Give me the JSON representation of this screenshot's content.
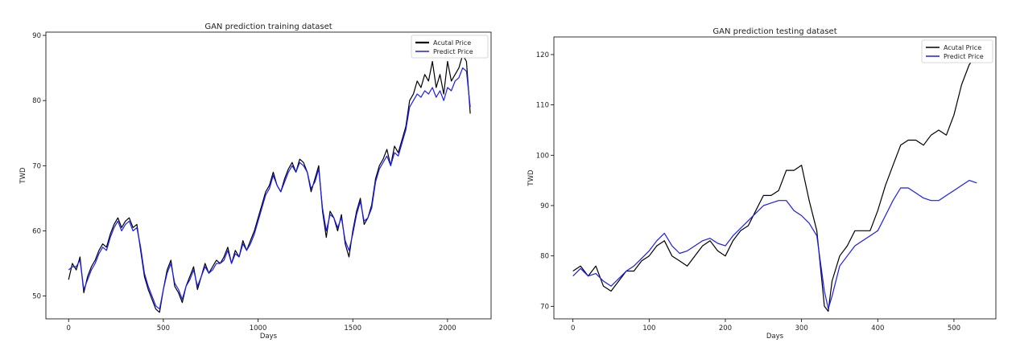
{
  "colors": {
    "actual": "#000000",
    "predict": "#1a1aff"
  },
  "chart_data": [
    {
      "type": "line",
      "title": "GAN prediction training dataset",
      "xlabel": "Days",
      "ylabel": "TWD",
      "xlim": [
        -120,
        2230
      ],
      "ylim": [
        46.5,
        90.5
      ],
      "xticks": [
        0,
        500,
        1000,
        1500,
        2000
      ],
      "yticks": [
        50,
        60,
        70,
        80,
        90
      ],
      "grid": false,
      "legend_position": "top-right",
      "series": [
        {
          "name": "Acutal Price",
          "color": "#000000",
          "x": [
            0,
            20,
            40,
            60,
            80,
            100,
            120,
            140,
            160,
            180,
            200,
            220,
            240,
            260,
            280,
            300,
            320,
            340,
            360,
            380,
            400,
            420,
            440,
            460,
            480,
            500,
            520,
            540,
            560,
            580,
            600,
            620,
            640,
            660,
            680,
            700,
            720,
            740,
            760,
            780,
            800,
            820,
            840,
            860,
            880,
            900,
            920,
            940,
            960,
            980,
            1000,
            1020,
            1040,
            1060,
            1080,
            1100,
            1120,
            1140,
            1160,
            1180,
            1200,
            1220,
            1240,
            1260,
            1280,
            1300,
            1320,
            1340,
            1360,
            1380,
            1400,
            1420,
            1440,
            1460,
            1480,
            1500,
            1520,
            1540,
            1560,
            1580,
            1600,
            1620,
            1640,
            1660,
            1680,
            1700,
            1720,
            1740,
            1760,
            1780,
            1800,
            1820,
            1840,
            1860,
            1880,
            1900,
            1920,
            1940,
            1960,
            1980,
            2000,
            2020,
            2040,
            2060,
            2080,
            2100,
            2120
          ],
          "y": [
            52.5,
            55,
            54,
            56,
            50.5,
            53,
            54.5,
            55.5,
            57,
            58,
            57.5,
            59.5,
            61,
            62,
            60.5,
            61.5,
            62,
            60.5,
            61,
            57,
            53,
            51,
            49.5,
            48,
            47.5,
            51,
            54,
            55.5,
            51.5,
            50.5,
            49,
            51.5,
            53,
            54.5,
            51,
            53,
            55,
            53.5,
            54.5,
            55.5,
            55,
            56,
            57.5,
            55,
            57,
            56,
            58.5,
            57,
            58.5,
            60,
            62,
            64,
            66,
            67,
            69,
            67,
            66,
            68,
            69.5,
            70.5,
            69,
            71,
            70.5,
            69,
            66,
            68,
            70,
            63,
            59,
            63,
            62,
            60,
            62.5,
            58,
            56,
            60,
            63,
            65,
            61,
            62,
            64,
            68,
            70,
            71,
            72.5,
            70,
            73,
            72,
            74,
            76,
            80,
            81,
            83,
            82,
            84,
            83,
            86,
            82,
            84,
            81,
            86,
            83,
            84,
            85,
            87,
            86,
            78
          ]
        },
        {
          "name": "Predict Price",
          "color": "#1a1aff",
          "x": [
            0,
            20,
            40,
            60,
            80,
            100,
            120,
            140,
            160,
            180,
            200,
            220,
            240,
            260,
            280,
            300,
            320,
            340,
            360,
            380,
            400,
            420,
            440,
            460,
            480,
            500,
            520,
            540,
            560,
            580,
            600,
            620,
            640,
            660,
            680,
            700,
            720,
            740,
            760,
            780,
            800,
            820,
            840,
            860,
            880,
            900,
            920,
            940,
            960,
            980,
            1000,
            1020,
            1040,
            1060,
            1080,
            1100,
            1120,
            1140,
            1160,
            1180,
            1200,
            1220,
            1240,
            1260,
            1280,
            1300,
            1320,
            1340,
            1360,
            1380,
            1400,
            1420,
            1440,
            1460,
            1480,
            1500,
            1520,
            1540,
            1560,
            1580,
            1600,
            1620,
            1640,
            1660,
            1680,
            1700,
            1720,
            1740,
            1760,
            1780,
            1800,
            1820,
            1840,
            1860,
            1880,
            1900,
            1920,
            1940,
            1960,
            1980,
            2000,
            2020,
            2040,
            2060,
            2080,
            2100,
            2120
          ],
          "y": [
            54,
            54.5,
            54.5,
            55.5,
            51,
            52.5,
            54,
            55,
            56.5,
            57.5,
            57,
            59,
            60.5,
            61.5,
            60,
            61,
            61.5,
            60,
            60.5,
            57.5,
            53.5,
            51.5,
            50,
            48.5,
            48,
            51,
            53.5,
            55,
            52,
            51,
            49.5,
            51.5,
            52.5,
            54,
            51.5,
            53,
            54.5,
            53.5,
            54,
            55,
            55,
            55.5,
            57,
            55,
            56.5,
            56,
            58,
            57,
            58,
            59.5,
            61.5,
            63.5,
            65.5,
            66.5,
            68.5,
            67,
            66,
            67.5,
            69,
            70,
            69,
            70.5,
            70,
            69,
            66.5,
            67.5,
            69.5,
            63.5,
            60,
            62.5,
            62,
            60.5,
            62,
            58.5,
            57,
            59.5,
            62.5,
            64.5,
            61.5,
            62,
            63.5,
            67.5,
            69.5,
            70.5,
            71.5,
            70,
            72,
            71.5,
            73.5,
            75.5,
            79,
            80,
            81,
            80.5,
            81.5,
            81,
            82,
            80.5,
            81.5,
            80,
            82,
            81.5,
            83,
            83.5,
            85,
            84.5,
            79
          ]
        }
      ]
    },
    {
      "type": "line",
      "title": "GAN prediction testing dataset",
      "xlabel": "Days",
      "ylabel": "TWD",
      "xlim": [
        -25,
        555
      ],
      "ylim": [
        67.5,
        123.5
      ],
      "xticks": [
        0,
        100,
        200,
        300,
        400,
        500
      ],
      "yticks": [
        70,
        80,
        90,
        100,
        110,
        120
      ],
      "grid": false,
      "legend_position": "top-right",
      "series": [
        {
          "name": "Acutal Price",
          "color": "#000000",
          "x": [
            0,
            10,
            20,
            30,
            40,
            50,
            60,
            70,
            80,
            90,
            100,
            110,
            120,
            130,
            140,
            150,
            160,
            170,
            180,
            190,
            200,
            210,
            220,
            230,
            240,
            250,
            260,
            270,
            280,
            290,
            300,
            310,
            320,
            330,
            335,
            340,
            350,
            360,
            370,
            380,
            390,
            400,
            410,
            420,
            430,
            440,
            450,
            460,
            470,
            480,
            490,
            500,
            510,
            520,
            530
          ],
          "y": [
            77,
            78,
            76,
            78,
            74,
            73,
            75,
            77,
            77,
            79,
            80,
            82,
            83,
            80,
            79,
            78,
            80,
            82,
            83,
            81,
            80,
            83,
            85,
            86,
            89,
            92,
            92,
            93,
            97,
            97,
            98,
            91,
            85,
            70,
            69,
            75,
            80,
            82,
            85,
            85,
            85,
            89,
            94,
            98,
            102,
            103,
            103,
            102,
            104,
            105,
            104,
            108,
            114,
            118,
            120
          ]
        },
        {
          "name": "Predict Price",
          "color": "#1a1aff",
          "x": [
            0,
            10,
            20,
            30,
            40,
            50,
            60,
            70,
            80,
            90,
            100,
            110,
            120,
            130,
            140,
            150,
            160,
            170,
            180,
            190,
            200,
            210,
            220,
            230,
            240,
            250,
            260,
            270,
            280,
            290,
            300,
            310,
            320,
            330,
            335,
            340,
            350,
            360,
            370,
            380,
            390,
            400,
            410,
            420,
            430,
            440,
            450,
            460,
            470,
            480,
            490,
            500,
            510,
            520,
            530
          ],
          "y": [
            76,
            77.5,
            76,
            76.5,
            75,
            74,
            75.5,
            77,
            78,
            79.5,
            81,
            83,
            84.5,
            82,
            80.5,
            81,
            82,
            83,
            83.5,
            82.5,
            82,
            84,
            85.5,
            87,
            88.5,
            90,
            90.5,
            91,
            91,
            89,
            88,
            86.5,
            84,
            73,
            69.5,
            72,
            78,
            80,
            82,
            83,
            84,
            85,
            88,
            91,
            93.5,
            93.5,
            92.5,
            91.5,
            91,
            91,
            92,
            93,
            94,
            95,
            94.5
          ]
        }
      ]
    }
  ]
}
